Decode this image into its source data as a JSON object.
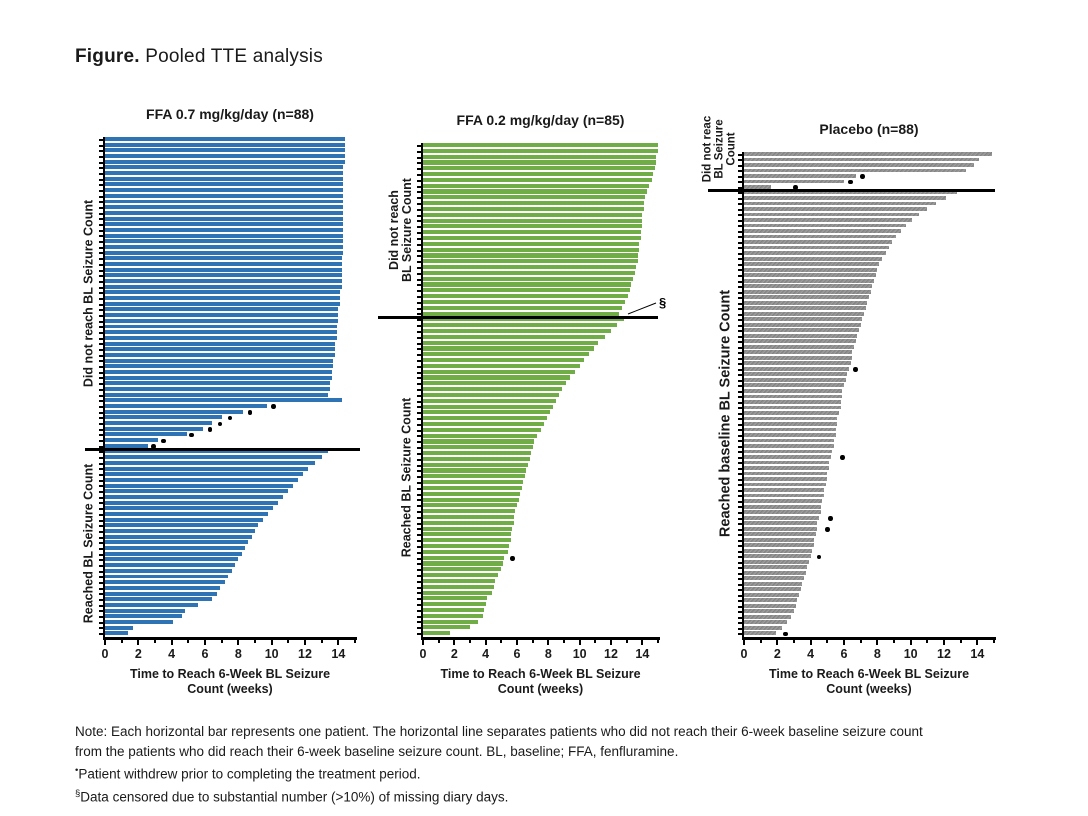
{
  "title": {
    "prefix": "Figure",
    "separator": ".",
    "text": " Pooled TTE analysis"
  },
  "x_axis": {
    "label_line1": "Time to Reach 6-Week BL Seizure",
    "label_line2": "Count (weeks)",
    "major_ticks": [
      0,
      2,
      4,
      6,
      8,
      10,
      12,
      14
    ],
    "minor_ticks": [
      1,
      3,
      5,
      7,
      9,
      11,
      13,
      15
    ],
    "range": [
      0,
      15
    ]
  },
  "colors": {
    "blue": "#2E74B5",
    "green": "#70AD47",
    "gray": "#8E8E8E",
    "separator": "#000000",
    "dot": "#000000"
  },
  "chart_data": [
    {
      "type": "bar",
      "orientation": "horizontal",
      "id": "ffa-0-7",
      "title": "FFA 0.7 mg/kg/day (n=88)",
      "n": 88,
      "bar_color": "#2E74B5",
      "hatched": false,
      "xlabel": "Time to Reach 6-Week BL Seizure Count (weeks)",
      "xlim": [
        0,
        15
      ],
      "section_top": {
        "label_lines": [
          "Did not reach BL Seizure Count"
        ],
        "values": [
          14.4,
          14.4,
          14.4,
          14.4,
          14.4,
          14.3,
          14.3,
          14.3,
          14.3,
          14.3,
          14.3,
          14.3,
          14.3,
          14.3,
          14.3,
          14.3,
          14.3,
          14.3,
          14.3,
          14.3,
          14.3,
          14.2,
          14.2,
          14.2,
          14.2,
          14.2,
          14.2,
          14.1,
          14.1,
          14.1,
          14.0,
          14.0,
          14.0,
          13.9,
          13.9,
          13.9,
          13.8,
          13.8,
          13.8,
          13.7,
          13.7,
          13.6,
          13.6,
          13.5,
          13.5,
          13.4,
          14.2,
          9.7,
          8.3,
          7.0,
          6.4,
          5.9,
          4.9,
          3.2,
          2.6
        ],
        "dots": [
          {
            "index": 47,
            "x": 10.1
          },
          {
            "index": 48,
            "x": 8.7
          },
          {
            "index": 49,
            "x": 7.5
          },
          {
            "index": 50,
            "x": 6.9
          },
          {
            "index": 51,
            "x": 6.3
          },
          {
            "index": 52,
            "x": 5.2
          },
          {
            "index": 53,
            "x": 3.5
          },
          {
            "index": 54,
            "x": 2.9
          }
        ]
      },
      "section_bottom": {
        "label_lines": [
          "Reached BL Seizure Count"
        ],
        "values": [
          13.4,
          13.0,
          12.6,
          12.2,
          11.9,
          11.6,
          11.3,
          11.0,
          10.7,
          10.4,
          10.1,
          9.8,
          9.5,
          9.2,
          9.0,
          8.8,
          8.6,
          8.4,
          8.2,
          8.0,
          7.8,
          7.6,
          7.4,
          7.2,
          6.9,
          6.7,
          6.4,
          5.6,
          4.8,
          4.6,
          4.1,
          1.7,
          1.4
        ],
        "dots": []
      }
    },
    {
      "type": "bar",
      "orientation": "horizontal",
      "id": "ffa-0-2",
      "title": "FFA 0.2 mg/kg/day (n=85)",
      "n": 85,
      "bar_color": "#70AD47",
      "hatched": false,
      "xlabel": "Time to Reach 6-Week BL Seizure Count (weeks)",
      "xlim": [
        0,
        15
      ],
      "annotation": {
        "symbol": "§",
        "meaning": "Data censored due to substantial number (>10%) of missing diary days."
      },
      "section_top": {
        "label_lines": [
          "Did not reach",
          "BL Seizure Count"
        ],
        "values": [
          15.0,
          15.0,
          14.9,
          14.9,
          14.8,
          14.7,
          14.6,
          14.4,
          14.3,
          14.2,
          14.1,
          14.1,
          14.0,
          14.0,
          14.0,
          13.9,
          13.9,
          13.8,
          13.8,
          13.7,
          13.7,
          13.6,
          13.5,
          13.4,
          13.3,
          13.2,
          13.1,
          12.9,
          12.7,
          12.5
        ],
        "dots": []
      },
      "section_bottom": {
        "label_lines": [
          "Reached BL Seizure Count"
        ],
        "values": [
          12.8,
          12.4,
          12.0,
          11.6,
          11.2,
          10.9,
          10.6,
          10.3,
          10.0,
          9.7,
          9.4,
          9.1,
          8.9,
          8.7,
          8.5,
          8.3,
          8.1,
          7.9,
          7.7,
          7.5,
          7.3,
          7.1,
          7.0,
          6.9,
          6.8,
          6.7,
          6.6,
          6.5,
          6.4,
          6.3,
          6.2,
          6.1,
          6.0,
          5.9,
          5.8,
          5.8,
          5.7,
          5.6,
          5.6,
          5.5,
          5.4,
          5.2,
          5.1,
          5.0,
          4.8,
          4.6,
          4.5,
          4.4,
          4.1,
          4.0,
          3.9,
          3.8,
          3.5,
          3.0,
          1.7
        ],
        "dots": [
          {
            "index": 41,
            "x": 5.7
          }
        ]
      }
    },
    {
      "type": "bar",
      "orientation": "horizontal",
      "id": "placebo",
      "title": "Placebo (n=88)",
      "n": 88,
      "bar_color": "#8E8E8E",
      "hatched": true,
      "xlabel": "Time to Reach 6-Week BL Seizure Count (weeks)",
      "xlim": [
        0,
        15
      ],
      "section_top": {
        "label_lines": [
          "Did not reac",
          "BL Seizure",
          "Count"
        ],
        "values": [
          14.9,
          14.1,
          13.8,
          13.3,
          6.7,
          6.0,
          1.6
        ],
        "dots": [
          {
            "index": 4,
            "x": 7.1
          },
          {
            "index": 5,
            "x": 6.4
          },
          {
            "index": 6,
            "x": 3.1
          }
        ]
      },
      "section_bottom": {
        "label_lines": [
          "Reached baseline BL Seizure Count"
        ],
        "values": [
          12.8,
          12.1,
          11.5,
          11.0,
          10.5,
          10.1,
          9.7,
          9.4,
          9.1,
          8.9,
          8.7,
          8.5,
          8.3,
          8.1,
          8.0,
          7.9,
          7.8,
          7.7,
          7.6,
          7.5,
          7.4,
          7.3,
          7.2,
          7.1,
          7.0,
          6.9,
          6.8,
          6.7,
          6.6,
          6.5,
          6.5,
          6.4,
          6.3,
          6.2,
          6.1,
          6.0,
          5.9,
          5.9,
          5.8,
          5.8,
          5.7,
          5.6,
          5.6,
          5.5,
          5.5,
          5.4,
          5.4,
          5.3,
          5.2,
          5.1,
          5.1,
          5.0,
          5.0,
          4.9,
          4.8,
          4.8,
          4.7,
          4.6,
          4.6,
          4.5,
          4.4,
          4.4,
          4.3,
          4.2,
          4.2,
          4.1,
          4.0,
          3.9,
          3.8,
          3.7,
          3.6,
          3.5,
          3.4,
          3.3,
          3.2,
          3.1,
          3.0,
          2.8,
          2.6,
          2.3,
          1.9
        ],
        "dots": [
          {
            "index": 32,
            "x": 6.7
          },
          {
            "index": 48,
            "x": 5.9
          },
          {
            "index": 59,
            "x": 5.2
          },
          {
            "index": 61,
            "x": 5.0
          },
          {
            "index": 66,
            "x": 4.5
          },
          {
            "index": 80,
            "x": 2.5
          }
        ]
      }
    }
  ],
  "notes": {
    "line1": "Note: Each horizontal bar represents one patient. The horizontal line separates patients who did not reach their 6-week baseline seizure count",
    "line2": "from the patients who did reach their 6-week baseline seizure count. BL, baseline; FFA, fenfluramine.",
    "footnote1_symbol": "•",
    "footnote1_text": "Patient withdrew prior to completing the treatment period.",
    "footnote2_symbol": "§",
    "footnote2_text": "Data censored due to substantial number (>10%) of missing diary days."
  }
}
